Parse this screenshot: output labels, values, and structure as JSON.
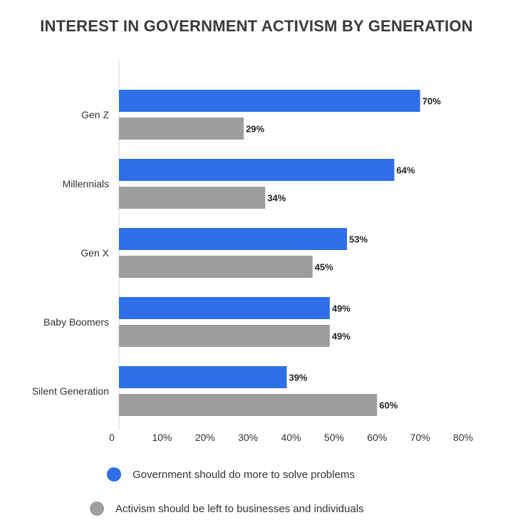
{
  "chart_data": {
    "type": "bar",
    "orientation": "horizontal",
    "title": "INTEREST IN GOVERNMENT ACTIVISM BY GENERATION",
    "categories": [
      "Gen Z",
      "Millennials",
      "Gen X",
      "Baby Boomers",
      "Silent Generation"
    ],
    "series": [
      {
        "name": "Government should do more to solve problems",
        "color": "#2f6fe8",
        "values": [
          70,
          64,
          53,
          49,
          39
        ],
        "labels": [
          "70%",
          "64%",
          "53%",
          "49%",
          "39%"
        ]
      },
      {
        "name": "Activism should be left to businesses and individuals",
        "color": "#9e9e9e",
        "values": [
          29,
          34,
          45,
          49,
          60
        ],
        "labels": [
          "29%",
          "34%",
          "45%",
          "49%",
          "60%"
        ]
      }
    ],
    "xlim": [
      0,
      80
    ],
    "x_ticks": [
      0,
      10,
      20,
      30,
      40,
      50,
      60,
      70,
      80
    ],
    "x_tick_labels": [
      "0",
      "10%",
      "20%",
      "30%",
      "40%",
      "50%",
      "60%",
      "70%",
      "80%"
    ],
    "grid": false,
    "legend_position": "bottom"
  }
}
